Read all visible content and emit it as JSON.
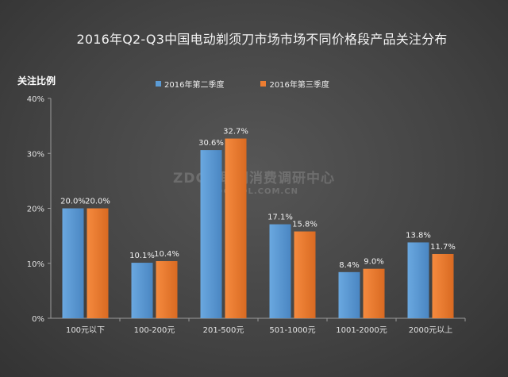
{
  "chart_data": {
    "type": "bar",
    "title": "2016年Q2-Q3中国电动剃须刀市场市场不同价格段产品关注分布",
    "ylabel": "关注比例",
    "xlabel": "",
    "categories": [
      "100元以下",
      "100-200元",
      "201-500元",
      "501-1000元",
      "1001-2000元",
      "2000元以上"
    ],
    "series": [
      {
        "name": "2016年第二季度",
        "values": [
          20.0,
          10.1,
          30.6,
          17.1,
          8.4,
          13.8
        ],
        "color": "#5b9bd5"
      },
      {
        "name": "2016年第三季度",
        "values": [
          20.0,
          10.4,
          32.7,
          15.8,
          9.0,
          11.7
        ],
        "color": "#ed7d31"
      }
    ],
    "ylim": [
      0,
      40
    ],
    "yticks": [
      "0%",
      "10%",
      "20%",
      "30%",
      "40%"
    ],
    "grid": false,
    "legend_position": "top"
  },
  "watermark": {
    "main": "ZDC互联网消费调研中心",
    "sub": "ZDC.ZOL.COM.CN"
  }
}
